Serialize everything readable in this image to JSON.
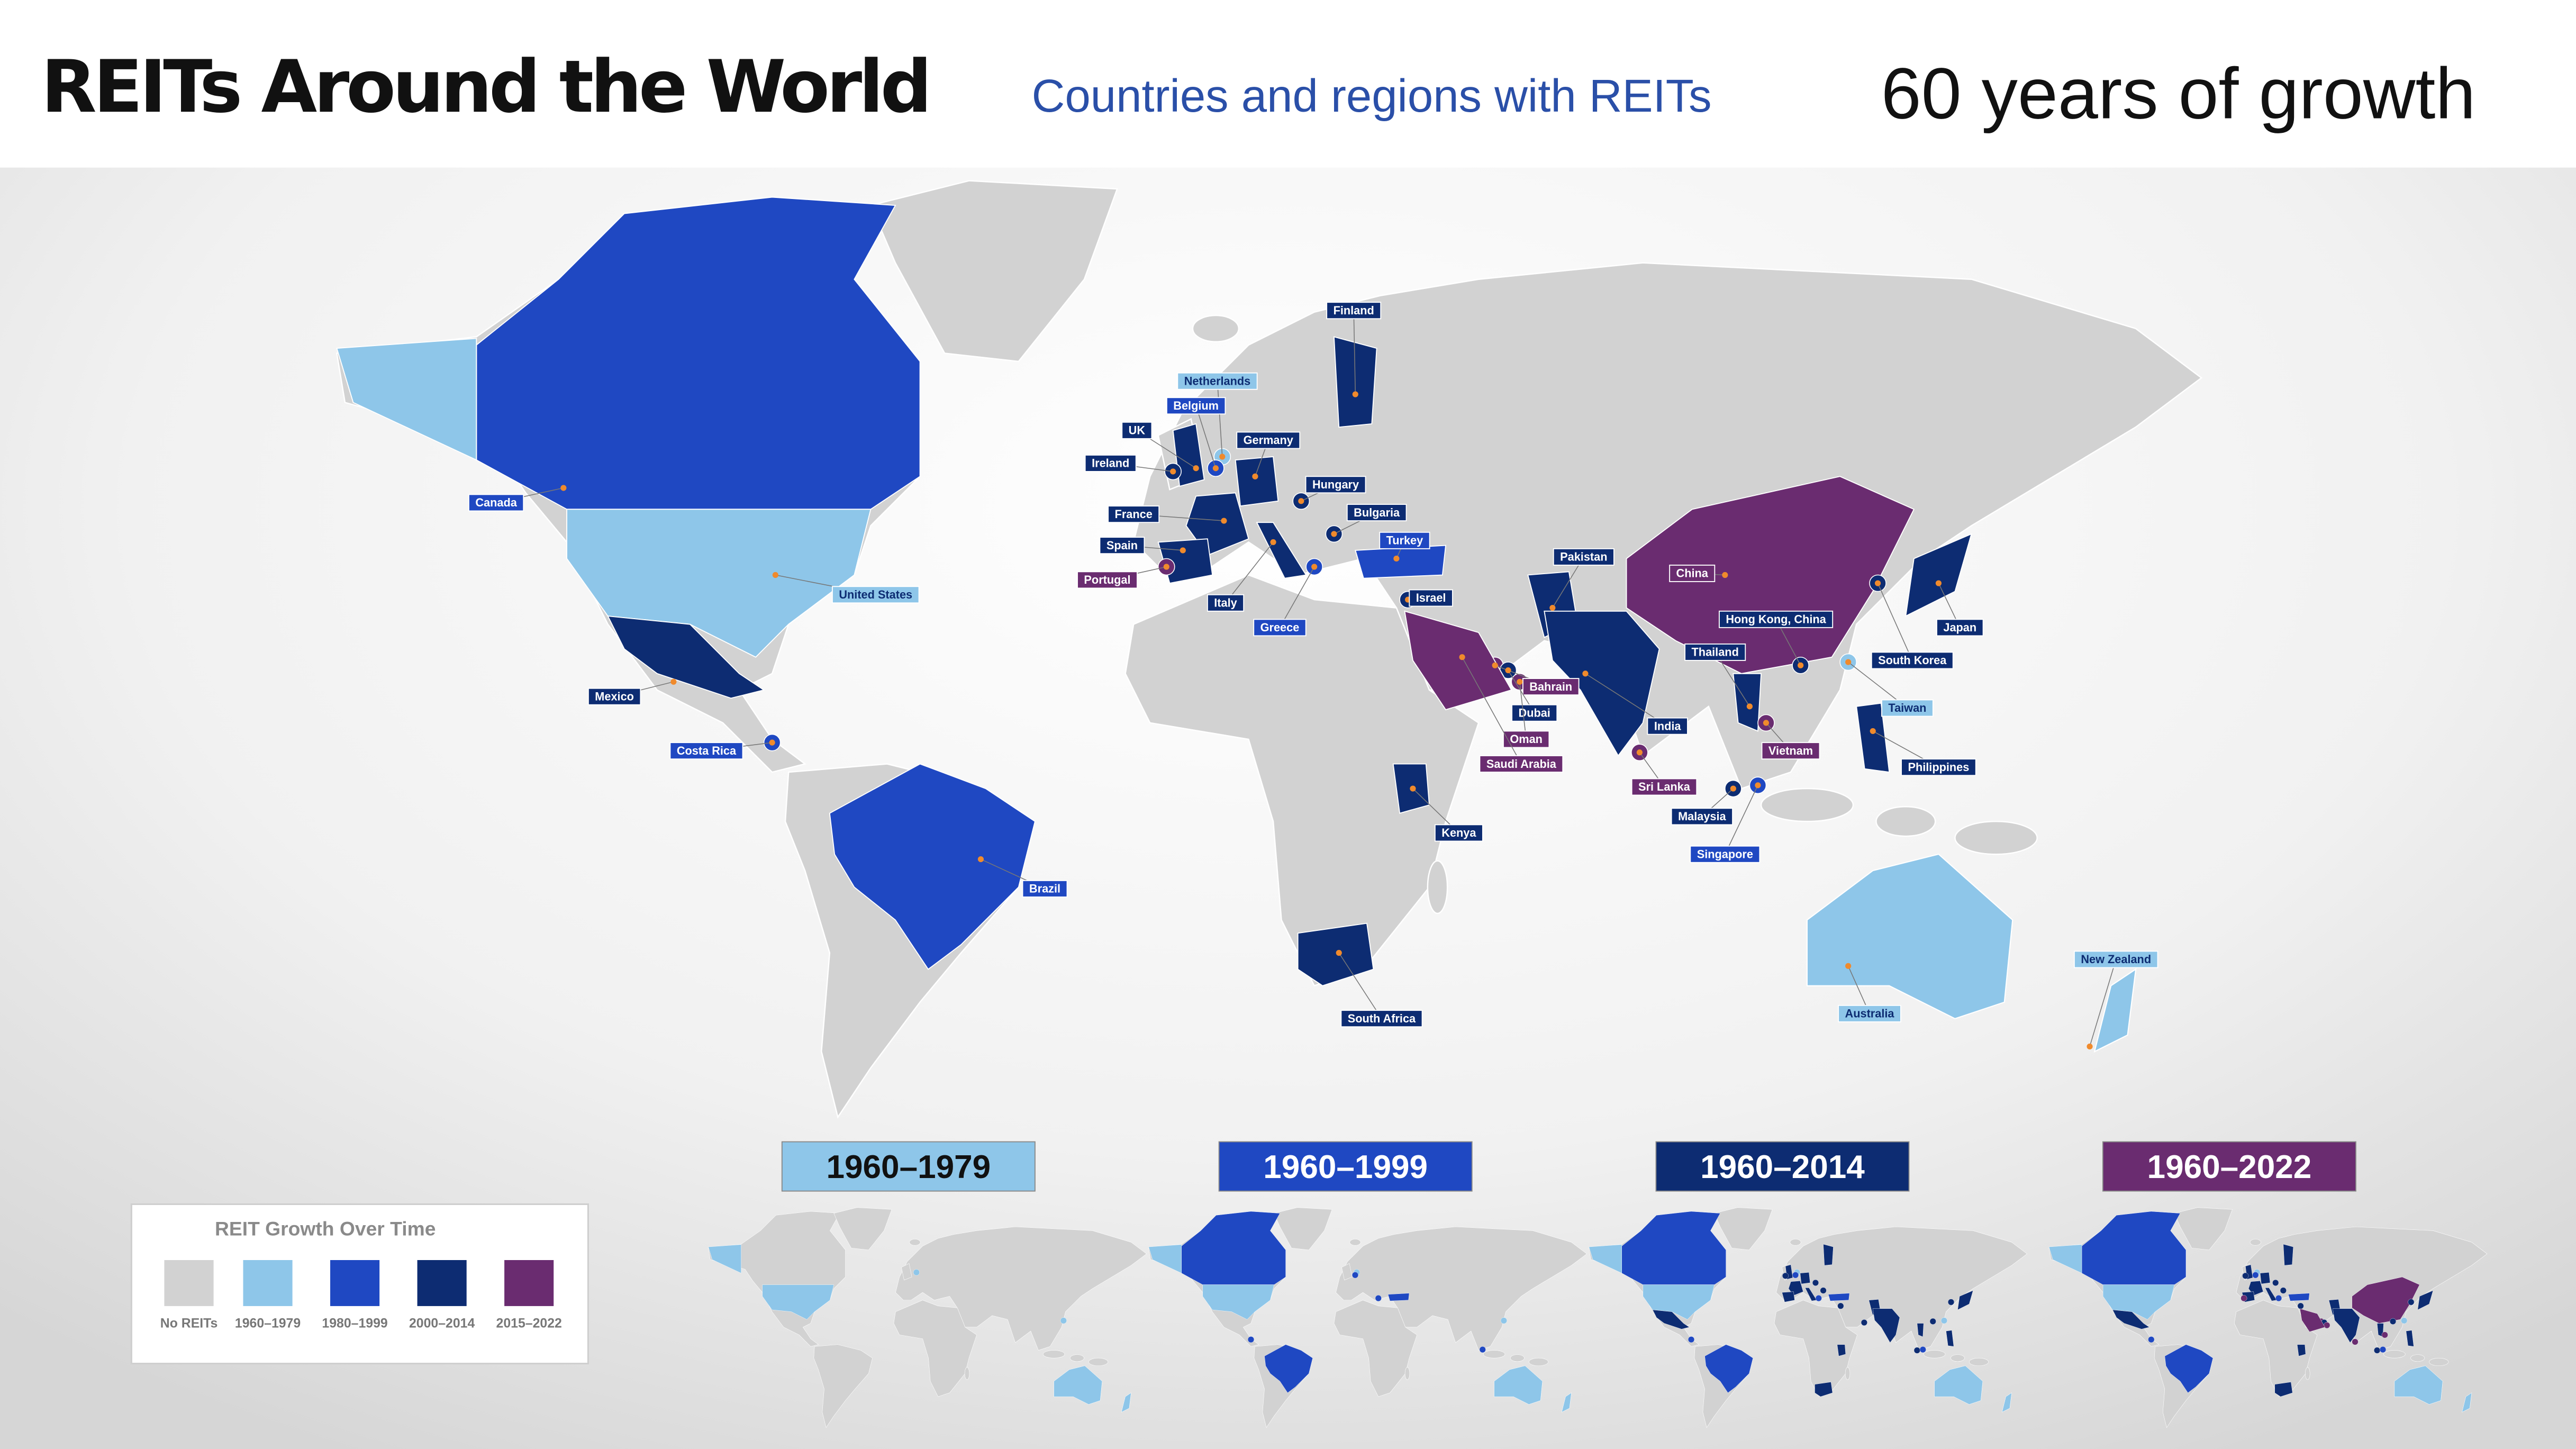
{
  "header": {
    "title": "REITs Around the World",
    "subtitle": "Countries and regions with REITs",
    "tagline": "60 years of growth"
  },
  "legend": {
    "title": "REIT Growth Over Time",
    "items": [
      {
        "label": "No REITs",
        "color": "#d2d2d2"
      },
      {
        "label": "1960–1979",
        "color": "#8ec6e9"
      },
      {
        "label": "1980–1999",
        "color": "#1f48c2"
      },
      {
        "label": "2000–2014",
        "color": "#0d2c72"
      },
      {
        "label": "2015–2022",
        "color": "#6a2c70"
      }
    ]
  },
  "timeline": [
    {
      "label": "1960–1979",
      "color": "#8ec6e9"
    },
    {
      "label": "1960–1999",
      "color": "#1f48c2"
    },
    {
      "label": "1960–2014",
      "color": "#0d2c72"
    },
    {
      "label": "1960–2022",
      "color": "#6a2c70"
    }
  ],
  "countries": [
    {
      "name": "Canada",
      "period": 2
    },
    {
      "name": "United States",
      "period": 1
    },
    {
      "name": "Mexico",
      "period": 3
    },
    {
      "name": "Costa Rica",
      "period": 2
    },
    {
      "name": "Brazil",
      "period": 2
    },
    {
      "name": "Finland",
      "period": 3
    },
    {
      "name": "Netherlands",
      "period": 1
    },
    {
      "name": "Belgium",
      "period": 2
    },
    {
      "name": "UK",
      "period": 3
    },
    {
      "name": "Germany",
      "period": 3
    },
    {
      "name": "Ireland",
      "period": 3
    },
    {
      "name": "Hungary",
      "period": 3
    },
    {
      "name": "France",
      "period": 3
    },
    {
      "name": "Bulgaria",
      "period": 3
    },
    {
      "name": "Spain",
      "period": 3
    },
    {
      "name": "Turkey",
      "period": 2
    },
    {
      "name": "Portugal",
      "period": 4
    },
    {
      "name": "Italy",
      "period": 3
    },
    {
      "name": "Greece",
      "period": 2
    },
    {
      "name": "Israel",
      "period": 3
    },
    {
      "name": "Pakistan",
      "period": 3
    },
    {
      "name": "China",
      "period": 4
    },
    {
      "name": "Hong Kong, China",
      "period": 3
    },
    {
      "name": "Thailand",
      "period": 3
    },
    {
      "name": "Bahrain",
      "period": 4
    },
    {
      "name": "Dubai",
      "period": 3
    },
    {
      "name": "Oman",
      "period": 4
    },
    {
      "name": "Saudi Arabia",
      "period": 4
    },
    {
      "name": "India",
      "period": 3
    },
    {
      "name": "Sri Lanka",
      "period": 4
    },
    {
      "name": "Vietnam",
      "period": 4
    },
    {
      "name": "Malaysia",
      "period": 3
    },
    {
      "name": "Singapore",
      "period": 2
    },
    {
      "name": "Kenya",
      "period": 3
    },
    {
      "name": "South Africa",
      "period": 3
    },
    {
      "name": "Japan",
      "period": 3
    },
    {
      "name": "South Korea",
      "period": 3
    },
    {
      "name": "Taiwan",
      "period": 1
    },
    {
      "name": "Philippines",
      "period": 3
    },
    {
      "name": "Australia",
      "period": 1
    },
    {
      "name": "New Zealand",
      "period": 1
    }
  ]
}
